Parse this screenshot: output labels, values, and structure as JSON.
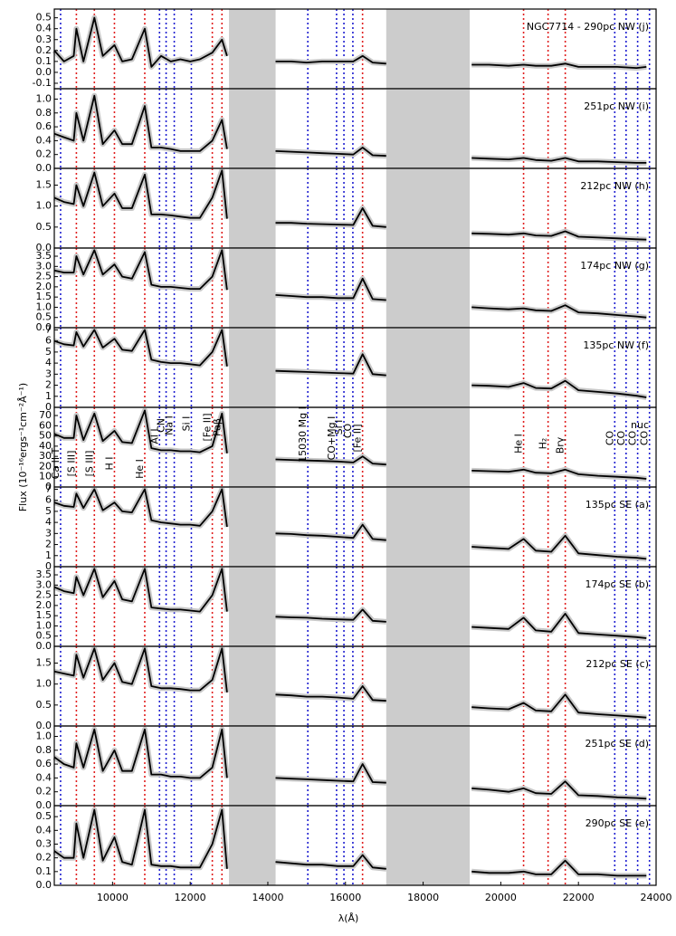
{
  "chart_data": {
    "type": "line",
    "xlabel": "λ(Å)",
    "ylabel": "Flux (10⁻¹⁶ergs⁻¹cm⁻²Å⁻¹)",
    "xlim": [
      8500,
      24000
    ],
    "xticks": [
      10000,
      12000,
      14000,
      16000,
      18000,
      20000,
      22000,
      24000
    ],
    "color": "#000000",
    "error_color": "#c8c8c8",
    "band_color": "#cccccc",
    "bands": [
      [
        13000,
        14200
      ],
      [
        17050,
        19200
      ]
    ],
    "x": [
      8500,
      8750,
      9000,
      9069,
      9250,
      9532,
      9750,
      10049,
      10250,
      10500,
      10830,
      11000,
      11250,
      11500,
      11750,
      12000,
      12250,
      12570,
      12818,
      12950,
      13600,
      14200,
      14600,
      15000,
      15400,
      15800,
      16200,
      16440,
      16700,
      17050,
      18100,
      19250,
      19700,
      20200,
      20587,
      20900,
      21300,
      21661,
      22000,
      22500,
      23000,
      23500,
      23750
    ],
    "lines": [
      {
        "wave": 8662,
        "color": "#1f1fd0",
        "label": "Ca II T"
      },
      {
        "wave": 9069,
        "color": "#e02020",
        "label": "[S III]"
      },
      {
        "wave": 9532,
        "color": "#e02020",
        "label": "[S III]"
      },
      {
        "wave": 10049,
        "color": "#e02020",
        "label": "H I"
      },
      {
        "wave": 10830,
        "color": "#e02020",
        "label": "He I"
      },
      {
        "wave": 11210,
        "color": "#1f1fd0",
        "label": "Al I"
      },
      {
        "wave": 11380,
        "color": "#1f1fd0",
        "label": "CN"
      },
      {
        "wave": 11590,
        "color": "#1f1fd0",
        "label": "Na I"
      },
      {
        "wave": 12030,
        "color": "#1f1fd0",
        "label": "Si I"
      },
      {
        "wave": 12570,
        "color": "#e02020",
        "label": "[Fe II]"
      },
      {
        "wave": 12818,
        "color": "#e02020",
        "label": "Paβ"
      },
      {
        "wave": 15030,
        "color": "#1f1fd0",
        "label": "15030 Mg I"
      },
      {
        "wave": 15770,
        "color": "#1f1fd0",
        "label": "CO+Mg I"
      },
      {
        "wave": 15960,
        "color": "#1f1fd0",
        "label": "Si I"
      },
      {
        "wave": 16190,
        "color": "#1f1fd0",
        "label": "CO"
      },
      {
        "wave": 16440,
        "color": "#e02020",
        "label": "[Fe II]"
      },
      {
        "wave": 20587,
        "color": "#e02020",
        "label": "He I"
      },
      {
        "wave": 21218,
        "color": "#e02020",
        "label": "H₂"
      },
      {
        "wave": 21661,
        "color": "#e02020",
        "label": "Brγ"
      },
      {
        "wave": 22935,
        "color": "#1f1fd0",
        "label": "CO"
      },
      {
        "wave": 23227,
        "color": "#1f1fd0",
        "label": "CO"
      },
      {
        "wave": 23525,
        "color": "#1f1fd0",
        "label": "CO"
      },
      {
        "wave": 23830,
        "color": "#1f1fd0",
        "label": "CO"
      }
    ],
    "panels": [
      {
        "label": "NGC7714 - 290pc NW (j)",
        "ylim": [
          -0.15,
          0.58
        ],
        "yticks": [
          -0.1,
          {
            "value": 0,
            "label": "0.0"
          },
          0.1,
          0.2,
          0.3,
          0.4,
          0.5
        ],
        "values": [
          0.2,
          0.1,
          0.15,
          0.4,
          0.1,
          0.5,
          0.15,
          0.25,
          0.1,
          0.12,
          0.4,
          0.05,
          0.15,
          0.1,
          0.12,
          0.1,
          0.12,
          0.18,
          0.3,
          0.15,
          null,
          0.1,
          0.1,
          0.09,
          0.1,
          0.1,
          0.1,
          0.15,
          0.09,
          0.08,
          null,
          0.07,
          0.07,
          0.06,
          0.07,
          0.06,
          0.06,
          0.08,
          0.05,
          0.05,
          0.05,
          0.04,
          0.05
        ]
      },
      {
        "label": "251pc NW (i)",
        "ylim": [
          0,
          1.15
        ],
        "yticks": [
          {
            "value": 0,
            "label": "0.0"
          },
          0.2,
          0.4,
          0.6,
          0.8,
          {
            "value": 1,
            "label": "1.0"
          }
        ],
        "values": [
          0.5,
          0.45,
          0.4,
          0.8,
          0.4,
          1.05,
          0.35,
          0.55,
          0.35,
          0.35,
          0.9,
          0.3,
          0.3,
          0.28,
          0.25,
          0.25,
          0.25,
          0.4,
          0.7,
          0.28,
          null,
          0.25,
          0.24,
          0.23,
          0.22,
          0.21,
          0.2,
          0.3,
          0.19,
          0.18,
          null,
          0.15,
          0.14,
          0.13,
          0.15,
          0.12,
          0.11,
          0.15,
          0.1,
          0.1,
          0.09,
          0.08,
          0.08
        ]
      },
      {
        "label": "212pc NW (h)",
        "ylim": [
          0,
          1.9
        ],
        "yticks": [
          {
            "value": 0,
            "label": "0.0"
          },
          0.5,
          {
            "value": 1,
            "label": "1.0"
          },
          1.5
        ],
        "values": [
          1.2,
          1.1,
          1.05,
          1.5,
          1.0,
          1.8,
          1.0,
          1.3,
          0.95,
          0.95,
          1.75,
          0.8,
          0.8,
          0.78,
          0.75,
          0.72,
          0.72,
          1.2,
          1.85,
          0.7,
          null,
          0.6,
          0.6,
          0.58,
          0.57,
          0.56,
          0.55,
          0.95,
          0.53,
          0.5,
          null,
          0.35,
          0.34,
          0.32,
          0.35,
          0.3,
          0.29,
          0.4,
          0.27,
          0.25,
          0.23,
          0.21,
          0.2
        ]
      },
      {
        "label": "174pc NW (g)",
        "ylim": [
          0,
          3.9
        ],
        "yticks": [
          {
            "value": 0,
            "label": "0.0"
          },
          0.5,
          {
            "value": 1,
            "label": "1.0"
          },
          1.5,
          {
            "value": 2,
            "label": "2.0"
          },
          2.5,
          {
            "value": 3,
            "label": "3.0"
          },
          3.5
        ],
        "values": [
          2.8,
          2.7,
          2.7,
          3.5,
          2.6,
          3.8,
          2.6,
          3.1,
          2.5,
          2.4,
          3.7,
          2.1,
          2.0,
          2.0,
          1.95,
          1.9,
          1.9,
          2.5,
          3.8,
          1.85,
          null,
          1.6,
          1.55,
          1.5,
          1.5,
          1.45,
          1.45,
          2.4,
          1.4,
          1.35,
          null,
          1.0,
          0.95,
          0.9,
          0.95,
          0.85,
          0.82,
          1.1,
          0.75,
          0.7,
          0.62,
          0.55,
          0.5
        ]
      },
      {
        "label": "135pc NW (f)",
        "ylim": [
          0,
          7.2
        ],
        "yticks": [
          0,
          1,
          2,
          3,
          4,
          5,
          6,
          7
        ],
        "values": [
          6,
          5.7,
          5.6,
          6.8,
          5.5,
          7,
          5.4,
          6.2,
          5.2,
          5.1,
          7,
          4.3,
          4.1,
          4.0,
          4.0,
          3.9,
          3.8,
          5.0,
          7,
          3.7,
          null,
          3.3,
          3.25,
          3.2,
          3.15,
          3.1,
          3.05,
          4.8,
          3.0,
          2.9,
          null,
          2.0,
          1.95,
          1.85,
          2.2,
          1.75,
          1.7,
          2.4,
          1.55,
          1.4,
          1.25,
          1.05,
          0.9
        ]
      },
      {
        "label": "nuc",
        "ylim": [
          0,
          78
        ],
        "yticks": [
          0,
          10,
          20,
          30,
          40,
          50,
          60,
          70
        ],
        "values": [
          52,
          48,
          48,
          70,
          46,
          72,
          45,
          55,
          44,
          43,
          75,
          38,
          36,
          36,
          35,
          35,
          34,
          40,
          72,
          33,
          null,
          27,
          26.5,
          26,
          25.5,
          25,
          24,
          30,
          23,
          22,
          null,
          16,
          15.5,
          15,
          17,
          14,
          13.5,
          17,
          12.5,
          11,
          10,
          9,
          8
        ]
      },
      {
        "label": "135pc SE (a)",
        "ylim": [
          0,
          7.2
        ],
        "yticks": [
          0,
          1,
          2,
          3,
          4,
          5,
          6,
          7
        ],
        "values": [
          5.8,
          5.5,
          5.4,
          6.6,
          5.3,
          7,
          5.1,
          5.8,
          5,
          4.9,
          7,
          4.2,
          4.0,
          3.9,
          3.8,
          3.8,
          3.7,
          5,
          7,
          3.6,
          null,
          3.0,
          2.95,
          2.85,
          2.8,
          2.7,
          2.6,
          3.8,
          2.5,
          2.4,
          null,
          1.8,
          1.7,
          1.6,
          2.5,
          1.45,
          1.35,
          2.8,
          1.2,
          1.05,
          0.9,
          0.8,
          0.7
        ]
      },
      {
        "label": "174pc SE (b)",
        "ylim": [
          0,
          3.9
        ],
        "yticks": [
          {
            "value": 0,
            "label": "0.0"
          },
          0.5,
          {
            "value": 1,
            "label": "1.0"
          },
          1.5,
          {
            "value": 2,
            "label": "2.0"
          },
          2.5,
          {
            "value": 3,
            "label": "3.0"
          },
          3.5
        ],
        "values": [
          2.9,
          2.7,
          2.6,
          3.4,
          2.5,
          3.8,
          2.4,
          3.2,
          2.3,
          2.2,
          3.8,
          1.9,
          1.85,
          1.8,
          1.8,
          1.75,
          1.7,
          2.5,
          3.8,
          1.7,
          null,
          1.45,
          1.42,
          1.4,
          1.35,
          1.32,
          1.3,
          1.8,
          1.25,
          1.2,
          null,
          0.95,
          0.9,
          0.85,
          1.4,
          0.78,
          0.72,
          1.6,
          0.65,
          0.58,
          0.52,
          0.45,
          0.4
        ]
      },
      {
        "label": "212pc SE (c)",
        "ylim": [
          0,
          1.9
        ],
        "yticks": [
          {
            "value": 0,
            "label": "0.0"
          },
          0.5,
          {
            "value": 1,
            "label": "1.0"
          },
          1.5
        ],
        "values": [
          1.3,
          1.25,
          1.2,
          1.7,
          1.15,
          1.85,
          1.1,
          1.5,
          1.05,
          1.0,
          1.85,
          0.95,
          0.9,
          0.9,
          0.88,
          0.85,
          0.85,
          1.1,
          1.85,
          0.8,
          null,
          0.75,
          0.73,
          0.7,
          0.7,
          0.68,
          0.65,
          0.95,
          0.62,
          0.6,
          null,
          0.45,
          0.42,
          0.4,
          0.55,
          0.37,
          0.35,
          0.75,
          0.32,
          0.28,
          0.25,
          0.22,
          0.2
        ]
      },
      {
        "label": "251pc SE (d)",
        "ylim": [
          0,
          1.15
        ],
        "yticks": [
          {
            "value": 0,
            "label": "0.0"
          },
          0.2,
          0.4,
          0.6,
          0.8,
          {
            "value": 1,
            "label": "1.0"
          }
        ],
        "values": [
          0.7,
          0.6,
          0.55,
          0.9,
          0.55,
          1.1,
          0.5,
          0.8,
          0.5,
          0.5,
          1.1,
          0.45,
          0.45,
          0.42,
          0.42,
          0.4,
          0.4,
          0.55,
          1.1,
          0.4,
          null,
          0.4,
          0.39,
          0.38,
          0.37,
          0.36,
          0.35,
          0.6,
          0.34,
          0.33,
          null,
          0.25,
          0.23,
          0.2,
          0.25,
          0.18,
          0.17,
          0.35,
          0.15,
          0.14,
          0.12,
          0.11,
          0.1
        ]
      },
      {
        "label": "290pc SE (e)",
        "ylim": [
          0,
          0.58
        ],
        "yticks": [
          {
            "value": 0,
            "label": "0.0"
          },
          0.1,
          0.2,
          0.3,
          0.4,
          0.5
        ],
        "values": [
          0.25,
          0.2,
          0.2,
          0.45,
          0.2,
          0.55,
          0.18,
          0.35,
          0.17,
          0.15,
          0.55,
          0.15,
          0.14,
          0.14,
          0.13,
          0.13,
          0.13,
          0.3,
          0.55,
          0.12,
          null,
          0.17,
          0.16,
          0.15,
          0.15,
          0.14,
          0.14,
          0.22,
          0.13,
          0.12,
          null,
          0.1,
          0.09,
          0.09,
          0.1,
          0.08,
          0.08,
          0.18,
          0.08,
          0.08,
          0.07,
          0.07,
          0.07
        ]
      }
    ]
  }
}
